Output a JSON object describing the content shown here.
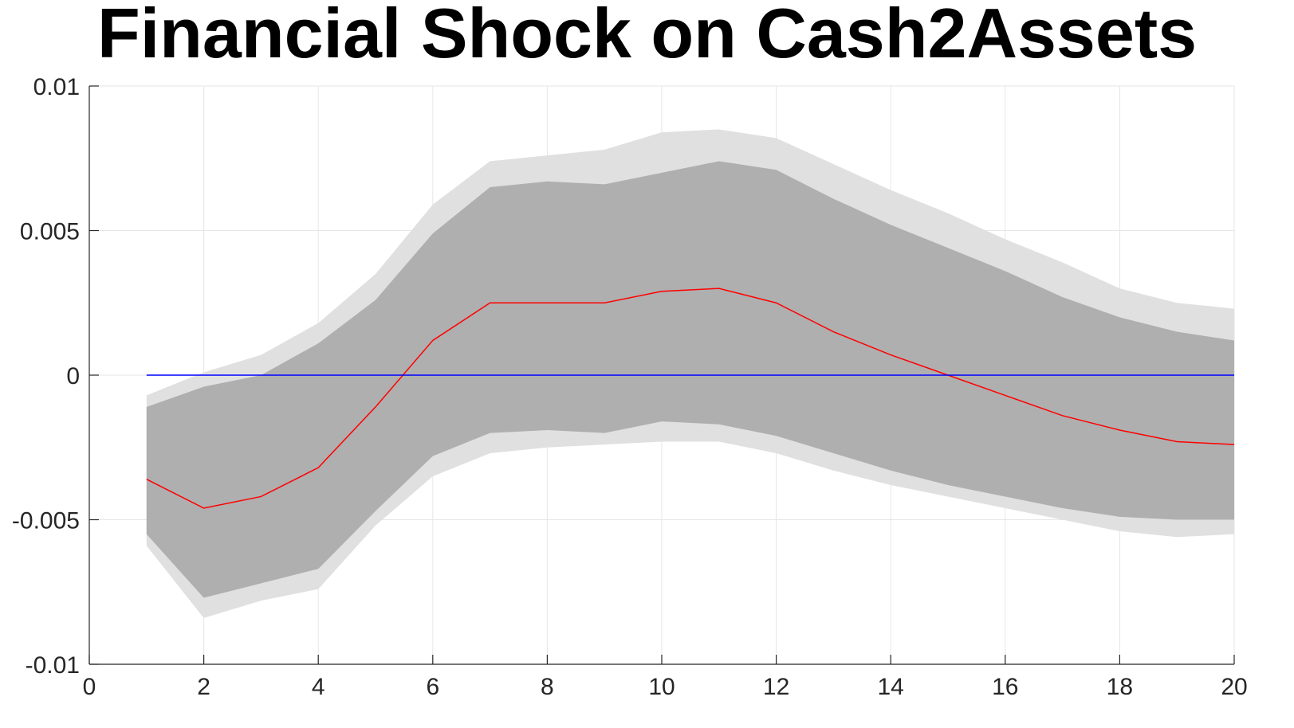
{
  "chart_data": {
    "type": "line",
    "title": "Financial Shock on Cash2Assets",
    "xlabel": "",
    "ylabel": "",
    "xlim": [
      0,
      20
    ],
    "ylim": [
      -0.01,
      0.01
    ],
    "grid": true,
    "x_ticks": [
      "0",
      "2",
      "4",
      "6",
      "8",
      "10",
      "12",
      "14",
      "16",
      "18",
      "20"
    ],
    "y_ticks": [
      "-0.01",
      "-0.005",
      "0",
      "0.005",
      "0.01"
    ],
    "x_tick_values": [
      0,
      2,
      4,
      6,
      8,
      10,
      12,
      14,
      16,
      18,
      20
    ],
    "y_tick_values": [
      -0.01,
      -0.005,
      0,
      0.005,
      0.01
    ],
    "x": [
      1,
      2,
      3,
      4,
      5,
      6,
      7,
      8,
      9,
      10,
      11,
      12,
      13,
      14,
      15,
      16,
      17,
      18,
      19,
      20
    ],
    "series": [
      {
        "kind": "band",
        "color": "#e0e0e0",
        "upper": [
          -0.0007,
          0.0001,
          0.0007,
          0.0018,
          0.0035,
          0.0059,
          0.0074,
          0.0076,
          0.0078,
          0.0084,
          0.0085,
          0.0082,
          0.0073,
          0.0064,
          0.0056,
          0.0047,
          0.0039,
          0.003,
          0.0025,
          0.0023
        ],
        "lower": [
          -0.0059,
          -0.0084,
          -0.0078,
          -0.0074,
          -0.0052,
          -0.0035,
          -0.0027,
          -0.0025,
          -0.0024,
          -0.0023,
          -0.0023,
          -0.0027,
          -0.0033,
          -0.0038,
          -0.0042,
          -0.0046,
          -0.005,
          -0.0054,
          -0.0056,
          -0.0055
        ]
      },
      {
        "kind": "band",
        "color": "#afafaf",
        "upper": [
          -0.0011,
          -0.0004,
          0.0,
          0.0011,
          0.0026,
          0.0049,
          0.0065,
          0.0067,
          0.0066,
          0.007,
          0.0074,
          0.0071,
          0.0061,
          0.0052,
          0.0044,
          0.0036,
          0.0027,
          0.002,
          0.0015,
          0.0012
        ],
        "lower": [
          -0.0055,
          -0.0077,
          -0.0072,
          -0.0067,
          -0.0047,
          -0.0028,
          -0.002,
          -0.0019,
          -0.002,
          -0.0016,
          -0.0017,
          -0.0021,
          -0.0027,
          -0.0033,
          -0.0038,
          -0.0042,
          -0.0046,
          -0.0049,
          -0.005,
          -0.005
        ]
      },
      {
        "kind": "line",
        "color": "#ff0000",
        "values": [
          -0.0036,
          -0.0046,
          -0.0042,
          -0.0032,
          -0.0011,
          0.0012,
          0.0025,
          0.0025,
          0.0025,
          0.0029,
          0.003,
          0.0025,
          0.0015,
          0.0007,
          0.0,
          -0.0007,
          -0.0014,
          -0.0019,
          -0.0023,
          -0.0024
        ]
      },
      {
        "kind": "line",
        "color": "#0000ff",
        "values": [
          0,
          0,
          0,
          0,
          0,
          0,
          0,
          0,
          0,
          0,
          0,
          0,
          0,
          0,
          0,
          0,
          0,
          0,
          0,
          0
        ]
      }
    ]
  }
}
